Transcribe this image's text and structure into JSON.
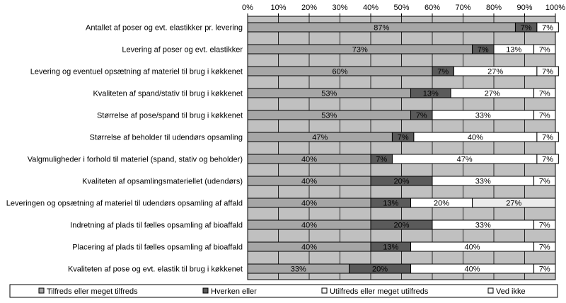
{
  "chart_data": {
    "type": "bar",
    "orientation": "horizontal",
    "stacked": "percent",
    "title": "",
    "xlabel": "",
    "ylabel": "",
    "xlim": [
      0,
      100
    ],
    "x_ticks": [
      "0%",
      "10%",
      "20%",
      "30%",
      "40%",
      "50%",
      "60%",
      "70%",
      "80%",
      "90%",
      "100%"
    ],
    "grid": "vertical",
    "legend_position": "bottom",
    "categories": [
      "Antallet af poser og evt. elastikker pr. levering",
      "Levering af poser og evt. elastikker",
      "Levering og eventuel opsætning af materiel til brug i køkkenet",
      "Kvaliteten af spand/stativ til brug i køkkenet",
      "Størrelse af pose/spand til brug i køkkenet",
      "Størrelse af beholder til udendørs opsamling",
      "Valgmuligheder i forhold til materiel (spand, stativ og beholder)",
      "Kvaliteten af opsamlingsmateriellet (udendørs)",
      "Leveringen og opsætning af materiel til udendørs opsamling af affald",
      "Indretning af plads til fælles opsamling af bioaffald",
      "Placering af plads til fælles opsamling af bioaffald",
      "Kvaliteten af pose og evt. elastik til brug i køkkenet"
    ],
    "series": [
      {
        "name": "Tilfreds eller meget tilfreds",
        "color": "#a6a6a6",
        "values": [
          87,
          73,
          60,
          53,
          53,
          47,
          40,
          40,
          40,
          40,
          40,
          33
        ],
        "labels": [
          "87%",
          "73%",
          "60%",
          "53%",
          "53%",
          "47%",
          "40%",
          "40%",
          "40%",
          "40%",
          "40%",
          "33%"
        ]
      },
      {
        "name": "Hverken eller",
        "color": "#5a5a5a",
        "values": [
          7,
          7,
          7,
          13,
          7,
          7,
          7,
          20,
          13,
          20,
          13,
          20
        ],
        "labels": [
          "7%",
          "7%",
          "7%",
          "13%",
          "7%",
          "7%",
          "7%",
          "20%",
          "13%",
          "20%",
          "13%",
          "20%"
        ]
      },
      {
        "name": "Utilfreds eller meget utilfreds",
        "color": "#ffffff",
        "values": [
          0,
          13,
          27,
          27,
          33,
          40,
          47,
          33,
          20,
          33,
          40,
          40
        ],
        "labels": [
          "",
          "13%",
          "27%",
          "27%",
          "33%",
          "40%",
          "47%",
          "33%",
          "20%",
          "33%",
          "40%",
          "40%"
        ]
      },
      {
        "name": "Ved ikke",
        "color": "#ffffff",
        "values": [
          7,
          7,
          7,
          7,
          7,
          7,
          7,
          7,
          27,
          7,
          7,
          7
        ],
        "labels": [
          "7%",
          "7%",
          "7%",
          "7%",
          "7%",
          "7%",
          "7%",
          "7%",
          "27%",
          "7%",
          "7%",
          "7%"
        ],
        "overrides": {
          "8": "#ececec"
        }
      }
    ]
  }
}
